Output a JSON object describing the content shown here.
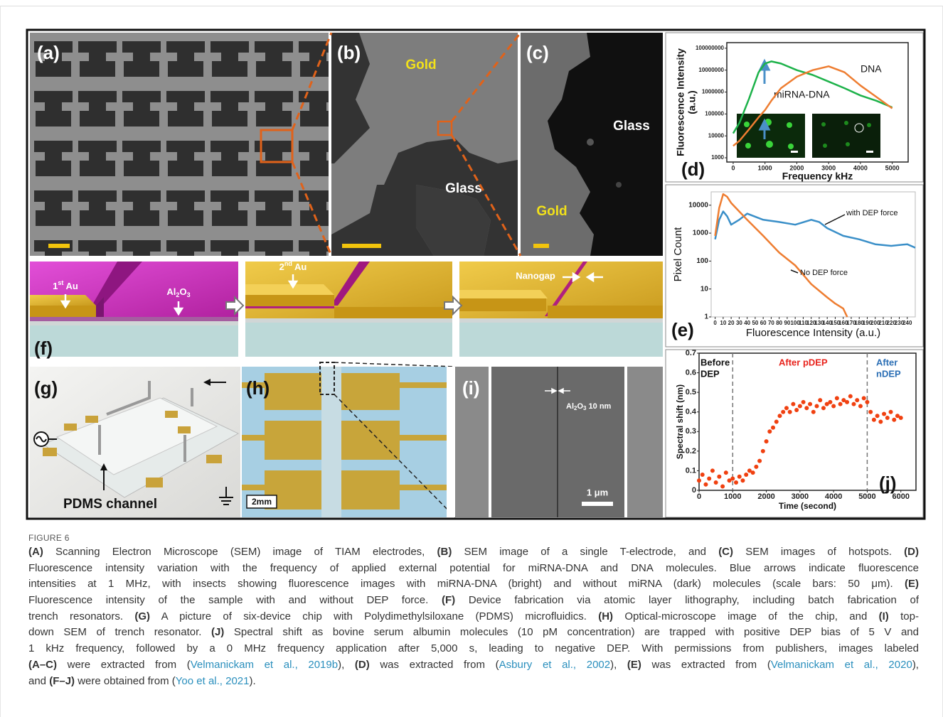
{
  "figure": {
    "panels": {
      "a": {
        "label": "(a)"
      },
      "b": {
        "label": "(b)",
        "texts": [
          "Gold",
          "Glass"
        ]
      },
      "c": {
        "label": "(c)",
        "texts": [
          "Glass",
          "Gold"
        ]
      },
      "d": {
        "label": "(d)",
        "chart": {
          "type": "line",
          "log": true,
          "ylabel": [
            "Fluorescence Intensity",
            "(a.u.)"
          ],
          "xlabel": "Frequency kHz",
          "x": [
            0,
            200,
            500,
            800,
            1000,
            1200,
            1500,
            2000,
            2500,
            3000,
            3500,
            4000,
            4500,
            5000
          ],
          "series": [
            {
              "name": "miRNA-DNA",
              "color": "#1db24a",
              "values": [
                13000,
                40000,
                500000,
                8000000,
                20000000,
                25000000,
                20000000,
                10000000,
                6000000,
                3000000,
                1500000,
                700000,
                400000,
                200000
              ]
            },
            {
              "name": "DNA",
              "color": "#ee7d31",
              "values": [
                3500,
                6000,
                20000,
                70000,
                150000,
                400000,
                1500000,
                5000000,
                10000000,
                15000000,
                8000000,
                2000000,
                600000,
                180000
              ]
            }
          ],
          "xlim": [
            -200,
            5500
          ],
          "xticks": [
            0,
            1000,
            2000,
            3000,
            4000,
            5000
          ],
          "ylim": [
            640,
            180000000
          ],
          "yticks": [
            1000,
            10000,
            100000,
            1000000,
            10000000,
            100000000
          ]
        }
      },
      "e": {
        "label": "(e)",
        "chart": {
          "type": "line",
          "log": true,
          "ylabel": [
            "Pixel Count"
          ],
          "xlabel": "Fluorescence Intensity (a.u.)",
          "series": [
            {
              "name": "with DEP force",
              "color": "#3a8fc8",
              "x": [
                0,
                5,
                10,
                15,
                20,
                30,
                40,
                60,
                80,
                100,
                120,
                130,
                140,
                160,
                180,
                200,
                220,
                240,
                250
              ],
              "values": [
                600,
                3000,
                6000,
                4000,
                2000,
                3000,
                5000,
                3000,
                2500,
                2000,
                3000,
                2500,
                1500,
                800,
                600,
                400,
                350,
                400,
                300
              ]
            },
            {
              "name": "No DEP force",
              "color": "#ee7d31",
              "x": [
                0,
                5,
                10,
                15,
                20,
                30,
                40,
                60,
                80,
                100,
                120,
                140,
                150,
                160,
                165
              ],
              "values": [
                800,
                8000,
                25000,
                20000,
                12000,
                6000,
                3000,
                800,
                200,
                70,
                15,
                5,
                3,
                2,
                1
              ]
            }
          ],
          "xlim": [
            -5,
            250
          ],
          "xticks": [
            0,
            10,
            20,
            30,
            40,
            50,
            60,
            70,
            80,
            90,
            100,
            110,
            120,
            130,
            140,
            150,
            160,
            170,
            180,
            190,
            200,
            210,
            220,
            230,
            240
          ],
          "ylim": [
            1,
            30000
          ],
          "yticks": [
            1,
            10,
            100,
            1000,
            10000
          ]
        }
      },
      "f": {
        "label": "(f)",
        "texts": {
          "first_au": [
            "1",
            "st",
            " Au"
          ],
          "al2o3": [
            "Al",
            "2",
            "O",
            "3"
          ],
          "second_au": [
            "2",
            "nd",
            " Au"
          ],
          "nanogap": "Nanogap"
        }
      },
      "g": {
        "label": "(g)",
        "texts": [
          "PDMS channel"
        ]
      },
      "h": {
        "label": "(h)",
        "texts": [
          "2mm"
        ]
      },
      "i": {
        "label": "(i)",
        "texts": {
          "al2o3": [
            "Al",
            "2",
            "O",
            "3",
            " 10 nm"
          ],
          "scale": "1 μm"
        }
      },
      "j": {
        "label": "(j)",
        "chart": {
          "type": "scatter",
          "log": false,
          "ylabel": [
            "Spectral shift (nm)"
          ],
          "xlabel": "Time (second)",
          "x": [
            0,
            100,
            200,
            300,
            400,
            500,
            600,
            700,
            800,
            900,
            1000,
            1100,
            1200,
            1300,
            1400,
            1500,
            1600,
            1700,
            1800,
            1900,
            2000,
            2100,
            2200,
            2300,
            2400,
            2500,
            2600,
            2700,
            2800,
            2900,
            3000,
            3100,
            3200,
            3300,
            3400,
            3500,
            3600,
            3700,
            3800,
            3900,
            4000,
            4100,
            4200,
            4300,
            4400,
            4500,
            4600,
            4700,
            4800,
            4900,
            5000,
            5100,
            5200,
            5300,
            5400,
            5500,
            5600,
            5700,
            5800,
            5900,
            6000
          ],
          "series": [
            {
              "color": "#f04010",
              "values": [
                0.05,
                0.08,
                0.03,
                0.06,
                0.1,
                0.04,
                0.07,
                0.02,
                0.09,
                0.05,
                0.06,
                0.04,
                0.07,
                0.05,
                0.08,
                0.1,
                0.09,
                0.12,
                0.15,
                0.2,
                0.25,
                0.3,
                0.32,
                0.35,
                0.38,
                0.4,
                0.42,
                0.4,
                0.44,
                0.41,
                0.43,
                0.45,
                0.42,
                0.44,
                0.4,
                0.43,
                0.46,
                0.42,
                0.44,
                0.45,
                0.43,
                0.47,
                0.44,
                0.46,
                0.45,
                0.48,
                0.44,
                0.46,
                0.43,
                0.47,
                0.45,
                0.4,
                0.36,
                0.38,
                0.35,
                0.39,
                0.37,
                0.4,
                0.36,
                0.38,
                0.37
              ]
            }
          ],
          "markers": [
            1000,
            5000
          ],
          "annotations": [
            {
              "text": [
                "Before",
                "DEP"
              ],
              "color": "#111111"
            },
            {
              "text": [
                "After pDEP"
              ],
              "color": "#e8231c"
            },
            {
              "text": [
                "After",
                "nDEP"
              ],
              "color": "#2c6fb5"
            }
          ],
          "xlim": [
            0,
            6450
          ],
          "xticks": [
            0,
            1000,
            2000,
            3000,
            4000,
            5000,
            6000
          ],
          "ylim": [
            0,
            0.7
          ],
          "yticks": [
            0,
            0.1,
            0.2,
            0.3,
            0.4,
            0.5,
            0.6,
            0.7
          ]
        }
      }
    }
  },
  "caption": {
    "figure_label": "FIGURE 6",
    "lines": [
      [
        {
          "text": "(A)",
          "style": "bold"
        },
        " Scanning Electron Microscope (SEM) image of TIAM electrodes, ",
        {
          "text": "(B)",
          "style": "bold"
        },
        " SEM image of a single T-electrode, and ",
        {
          "text": "(C)",
          "style": "bold"
        },
        " SEM images of hotspots. ",
        {
          "text": "(D)",
          "style": "bold"
        }
      ],
      [
        "Fluorescence intensity variation with the frequency of applied external potential for miRNA-DNA and DNA molecules. Blue arrows indicate fluorescence"
      ],
      [
        "intensities at 1 MHz, with insects showing fluorescence images with miRNA-DNA (bright) and without miRNA (dark) molecules (scale bars: 50 μm). ",
        {
          "text": "(E)",
          "style": "bold"
        }
      ],
      [
        "Fluorescence intensity of the sample with and without DEP force. ",
        {
          "text": "(F)",
          "style": "bold"
        },
        " Device fabrication via atomic layer lithography, including batch fabrication of"
      ],
      [
        "trench resonators. ",
        {
          "text": "(G)",
          "style": "bold"
        },
        " A picture of six-device chip with Polydimethylsiloxane (PDMS) microfluidics. ",
        {
          "text": "(H)",
          "style": "bold"
        },
        " Optical-microscope image of the chip, and ",
        {
          "text": "(I)",
          "style": "bold"
        },
        " top-"
      ],
      [
        "down SEM of trench resonator. ",
        {
          "text": "(J)",
          "style": "bold"
        },
        " Spectral shift as bovine serum albumin molecules (10 pM concentration) are trapped with positive DEP bias of 5 V and"
      ],
      [
        "1 kHz frequency, followed by a 0 MHz frequency application after 5,000 s, leading to negative DEP. With permissions from publishers, images labeled"
      ],
      [
        {
          "text": "(A–C)",
          "style": "bold"
        },
        " were extracted from (",
        {
          "text": "Velmanickam et al., 2019b",
          "style": "link"
        },
        "), ",
        {
          "text": "(D)",
          "style": "bold"
        },
        " was extracted from (",
        {
          "text": "Asbury et al., 2002",
          "style": "link"
        },
        "), ",
        {
          "text": "(E)",
          "style": "bold"
        },
        " was extracted from (",
        {
          "text": "Velmanickam et al., 2020",
          "style": "link"
        },
        "),"
      ],
      [
        "and ",
        {
          "text": "(F–J)",
          "style": "bold"
        },
        " were obtained from (",
        {
          "text": "Yoo et al., 2021",
          "style": "link"
        },
        ")."
      ]
    ]
  }
}
